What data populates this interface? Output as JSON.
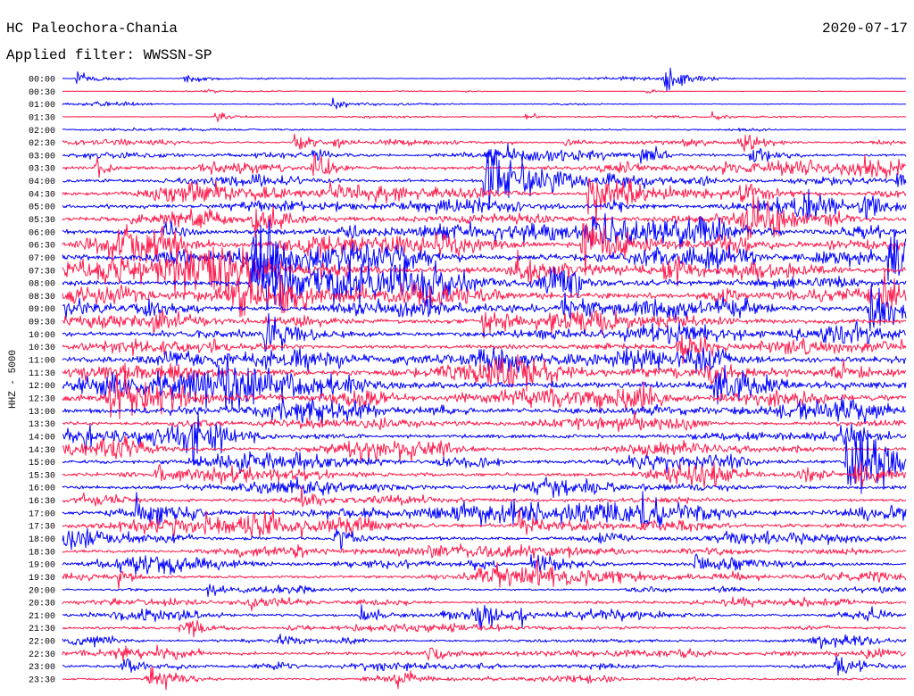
{
  "header": {
    "station": "HC Paleochora-Chania",
    "date": "2020-07-17",
    "filter": "Applied filter: WWSSN-SP"
  },
  "chart_data": {
    "type": "line",
    "ylabel": "HHZ - 5000",
    "xlim": [
      0,
      30
    ],
    "grid": false,
    "legend": "none",
    "trace_colors": [
      "#0000ff",
      "#ff1a4b"
    ],
    "rows": [
      {
        "label": "00:00",
        "amplitude": 0.08,
        "events": [
          {
            "t": 0.5,
            "a": 0.6
          },
          {
            "t": 4.3,
            "a": 0.5
          },
          {
            "t": 21.4,
            "a": 1.0
          }
        ]
      },
      {
        "label": "00:30",
        "amplitude": 0.05,
        "events": [
          {
            "t": 5.1,
            "a": 0.2
          },
          {
            "t": 20.8,
            "a": 0.2
          }
        ]
      },
      {
        "label": "01:00",
        "amplitude": 0.08,
        "events": [
          {
            "t": 9.6,
            "a": 0.4
          }
        ]
      },
      {
        "label": "01:30",
        "amplitude": 0.08,
        "events": [
          {
            "t": 5.4,
            "a": 0.5
          },
          {
            "t": 16.5,
            "a": 0.3
          },
          {
            "t": 23.1,
            "a": 0.3
          }
        ]
      },
      {
        "label": "02:00",
        "amplitude": 0.08,
        "events": []
      },
      {
        "label": "02:30",
        "amplitude": 0.2,
        "events": [
          {
            "t": 8.2,
            "a": 0.8
          },
          {
            "t": 9.7,
            "a": 0.4
          },
          {
            "t": 17.9,
            "a": 0.4
          },
          {
            "t": 22.1,
            "a": 0.6
          },
          {
            "t": 24.1,
            "a": 0.9
          }
        ]
      },
      {
        "label": "03:00",
        "amplitude": 0.3,
        "events": [
          {
            "t": 8.9,
            "a": 0.7
          },
          {
            "t": 15.1,
            "a": 1.2
          },
          {
            "t": 20.6,
            "a": 0.8
          },
          {
            "t": 24.5,
            "a": 0.9
          }
        ]
      },
      {
        "label": "03:30",
        "amplitude": 0.4,
        "events": [
          {
            "t": 1.2,
            "a": 0.7
          },
          {
            "t": 8.9,
            "a": 1.0
          },
          {
            "t": 19.7,
            "a": 0.6
          },
          {
            "t": 23.5,
            "a": 0.6
          }
        ]
      },
      {
        "label": "04:00",
        "amplitude": 0.4,
        "events": [
          {
            "t": 15.0,
            "a": 3.0
          },
          {
            "t": 29.7,
            "a": 1.2
          }
        ]
      },
      {
        "label": "04:30",
        "amplitude": 0.45,
        "events": [
          {
            "t": 9.5,
            "a": 0.8
          },
          {
            "t": 18.7,
            "a": 2.2
          },
          {
            "t": 24.1,
            "a": 1.2
          }
        ]
      },
      {
        "label": "05:00",
        "amplitude": 0.5,
        "events": [
          {
            "t": 7.9,
            "a": 0.8
          },
          {
            "t": 19.3,
            "a": 0.8
          },
          {
            "t": 28.4,
            "a": 1.3
          }
        ]
      },
      {
        "label": "05:30",
        "amplitude": 0.55,
        "events": [
          {
            "t": 4.5,
            "a": 1.0
          },
          {
            "t": 6.8,
            "a": 1.5
          },
          {
            "t": 24.4,
            "a": 2.0
          }
        ]
      },
      {
        "label": "06:00",
        "amplitude": 0.6,
        "events": [
          {
            "t": 3.6,
            "a": 0.9
          },
          {
            "t": 10.0,
            "a": 1.0
          },
          {
            "t": 18.6,
            "a": 1.8
          }
        ]
      },
      {
        "label": "06:30",
        "amplitude": 0.65,
        "events": [
          {
            "t": 3.8,
            "a": 1.0
          },
          {
            "t": 18.5,
            "a": 2.5
          },
          {
            "t": 23.3,
            "a": 1.2
          }
        ]
      },
      {
        "label": "07:00",
        "amplitude": 0.7,
        "events": [
          {
            "t": 6.8,
            "a": 3.0
          },
          {
            "t": 22.9,
            "a": 1.5
          },
          {
            "t": 29.4,
            "a": 3.0
          }
        ]
      },
      {
        "label": "07:30",
        "amplitude": 0.8,
        "events": [
          {
            "t": 5.7,
            "a": 1.8
          },
          {
            "t": 16.2,
            "a": 1.4
          },
          {
            "t": 21.4,
            "a": 1.3
          }
        ]
      },
      {
        "label": "08:00",
        "amplitude": 0.75,
        "events": [
          {
            "t": 6.7,
            "a": 3.0
          },
          {
            "t": 12.7,
            "a": 2.0
          }
        ]
      },
      {
        "label": "08:30",
        "amplitude": 0.8,
        "events": [
          {
            "t": 6.2,
            "a": 1.5
          },
          {
            "t": 29.2,
            "a": 1.5
          }
        ]
      },
      {
        "label": "09:00",
        "amplitude": 0.65,
        "events": [
          {
            "t": 2.9,
            "a": 1.0
          },
          {
            "t": 17.8,
            "a": 1.3
          },
          {
            "t": 28.7,
            "a": 2.0
          }
        ]
      },
      {
        "label": "09:30",
        "amplitude": 0.6,
        "events": [
          {
            "t": 3.2,
            "a": 1.2
          },
          {
            "t": 14.9,
            "a": 1.4
          }
        ]
      },
      {
        "label": "10:00",
        "amplitude": 0.55,
        "events": [
          {
            "t": 7.2,
            "a": 1.6
          }
        ]
      },
      {
        "label": "10:30",
        "amplitude": 0.5,
        "events": [
          {
            "t": 21.9,
            "a": 1.6
          }
        ]
      },
      {
        "label": "11:00",
        "amplitude": 0.7,
        "events": [
          {
            "t": 19.6,
            "a": 1.2
          },
          {
            "t": 22.5,
            "a": 1.3
          }
        ]
      },
      {
        "label": "11:30",
        "amplitude": 0.8,
        "events": [
          {
            "t": 22.9,
            "a": 1.0
          }
        ]
      },
      {
        "label": "12:00",
        "amplitude": 0.9,
        "events": [
          {
            "t": 23.2,
            "a": 2.0
          }
        ]
      },
      {
        "label": "12:30",
        "amplitude": 0.8,
        "events": [
          {
            "t": 1.7,
            "a": 2.0
          }
        ]
      },
      {
        "label": "13:00",
        "amplitude": 0.65,
        "events": [
          {
            "t": 13.0,
            "a": 0.8
          }
        ]
      },
      {
        "label": "13:30",
        "amplitude": 0.45,
        "events": []
      },
      {
        "label": "14:00",
        "amplitude": 0.45,
        "events": [
          {
            "t": 0.8,
            "a": 0.8
          },
          {
            "t": 4.6,
            "a": 1.8
          },
          {
            "t": 27.7,
            "a": 1.0
          }
        ]
      },
      {
        "label": "14:30",
        "amplitude": 0.45,
        "events": [
          {
            "t": 1.8,
            "a": 0.8
          }
        ]
      },
      {
        "label": "15:00",
        "amplitude": 0.45,
        "events": [
          {
            "t": 27.9,
            "a": 3.0
          }
        ]
      },
      {
        "label": "15:30",
        "amplitude": 0.45,
        "events": [
          {
            "t": 3.4,
            "a": 0.8
          },
          {
            "t": 28.2,
            "a": 1.2
          }
        ]
      },
      {
        "label": "16:00",
        "amplitude": 0.45,
        "events": [
          {
            "t": 17.4,
            "a": 0.8
          }
        ]
      },
      {
        "label": "16:30",
        "amplitude": 0.4,
        "events": [
          {
            "t": 8.5,
            "a": 0.8
          }
        ]
      },
      {
        "label": "17:00",
        "amplitude": 0.55,
        "events": [
          {
            "t": 2.6,
            "a": 1.2
          },
          {
            "t": 20.6,
            "a": 1.0
          }
        ]
      },
      {
        "label": "17:30",
        "amplitude": 0.55,
        "events": [
          {
            "t": 16.2,
            "a": 1.0
          }
        ]
      },
      {
        "label": "18:00",
        "amplitude": 0.45,
        "events": [
          {
            "t": 9.7,
            "a": 0.9
          }
        ]
      },
      {
        "label": "18:30",
        "amplitude": 0.35,
        "events": []
      },
      {
        "label": "19:00",
        "amplitude": 0.35,
        "events": [
          {
            "t": 16.7,
            "a": 1.0
          },
          {
            "t": 22.5,
            "a": 0.8
          }
        ]
      },
      {
        "label": "19:30",
        "amplitude": 0.35,
        "events": [
          {
            "t": 2.0,
            "a": 0.6
          },
          {
            "t": 16.8,
            "a": 1.0
          }
        ]
      },
      {
        "label": "20:00",
        "amplitude": 0.25,
        "events": [
          {
            "t": 5.2,
            "a": 0.6
          }
        ]
      },
      {
        "label": "20:30",
        "amplitude": 0.3,
        "events": [
          {
            "t": 6.7,
            "a": 0.6
          }
        ]
      },
      {
        "label": "21:00",
        "amplitude": 0.35,
        "events": [
          {
            "t": 10.6,
            "a": 0.7
          },
          {
            "t": 14.8,
            "a": 0.9
          },
          {
            "t": 16.2,
            "a": 0.7
          }
        ]
      },
      {
        "label": "21:30",
        "amplitude": 0.35,
        "events": [
          {
            "t": 4.2,
            "a": 0.9
          }
        ]
      },
      {
        "label": "22:00",
        "amplitude": 0.25,
        "events": [
          {
            "t": 7.7,
            "a": 0.6
          },
          {
            "t": 26.7,
            "a": 0.7
          }
        ]
      },
      {
        "label": "22:30",
        "amplitude": 0.35,
        "events": [
          {
            "t": 1.9,
            "a": 0.7
          },
          {
            "t": 13.0,
            "a": 0.8
          }
        ]
      },
      {
        "label": "23:00",
        "amplitude": 0.25,
        "events": [
          {
            "t": 2.1,
            "a": 0.8
          },
          {
            "t": 27.5,
            "a": 0.9
          }
        ]
      },
      {
        "label": "23:30",
        "amplitude": 0.25,
        "events": [
          {
            "t": 3.0,
            "a": 1.1
          },
          {
            "t": 11.9,
            "a": 0.7
          }
        ]
      }
    ]
  }
}
